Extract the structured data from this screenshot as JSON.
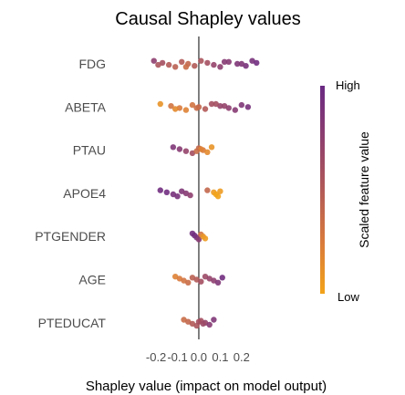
{
  "chart_data": {
    "type": "scatter",
    "subtype": "beeswarm",
    "title": "Causal Shapley values",
    "xlabel": "Shapley value (impact on model output)",
    "ylabel": "",
    "xlim": [
      -0.29,
      0.35
    ],
    "xticks": [
      -0.2,
      -0.1,
      0.0,
      0.1,
      0.2
    ],
    "xtick_labels": [
      "-0.2",
      "-0.1",
      "0.0",
      "0.1",
      "0.2"
    ],
    "grid": false,
    "zero_line": true,
    "legend": {
      "title": "Scaled feature value",
      "high_label": "High",
      "low_label": "Low",
      "placement": "right",
      "colors": [
        "#f2a31a",
        "#d97a3c",
        "#b25a58",
        "#8e3f6f",
        "#6a2a83"
      ]
    },
    "features": [
      {
        "name": "FDG",
        "points": [
          {
            "x": -0.21,
            "c": 0.75
          },
          {
            "x": -0.17,
            "c": 0.6
          },
          {
            "x": -0.14,
            "c": 0.5
          },
          {
            "x": -0.11,
            "c": 0.45
          },
          {
            "x": -0.08,
            "c": 0.5
          },
          {
            "x": -0.05,
            "c": 0.4
          },
          {
            "x": -0.02,
            "c": 0.5
          },
          {
            "x": 0.01,
            "c": 0.55
          },
          {
            "x": 0.04,
            "c": 0.6
          },
          {
            "x": 0.07,
            "c": 0.7
          },
          {
            "x": 0.1,
            "c": 0.75
          },
          {
            "x": 0.14,
            "c": 0.8
          },
          {
            "x": 0.18,
            "c": 0.85
          },
          {
            "x": 0.22,
            "c": 0.9
          },
          {
            "x": 0.25,
            "c": 0.9
          },
          {
            "x": 0.27,
            "c": 0.95
          },
          {
            "x": -0.19,
            "c": 0.55
          },
          {
            "x": -0.06,
            "c": 0.35
          },
          {
            "x": 0.12,
            "c": 0.8
          },
          {
            "x": 0.2,
            "c": 0.85
          }
        ]
      },
      {
        "name": "ABETA",
        "points": [
          {
            "x": -0.18,
            "c": 0.1
          },
          {
            "x": -0.13,
            "c": 0.3
          },
          {
            "x": -0.09,
            "c": 0.25
          },
          {
            "x": -0.06,
            "c": 0.2
          },
          {
            "x": -0.03,
            "c": 0.3
          },
          {
            "x": 0.0,
            "c": 0.4
          },
          {
            "x": 0.03,
            "c": 0.5
          },
          {
            "x": 0.06,
            "c": 0.6
          },
          {
            "x": 0.1,
            "c": 0.7
          },
          {
            "x": 0.14,
            "c": 0.75
          },
          {
            "x": 0.17,
            "c": 0.8
          },
          {
            "x": 0.2,
            "c": 0.85
          },
          {
            "x": 0.23,
            "c": 0.9
          },
          {
            "x": -0.11,
            "c": 0.15
          },
          {
            "x": 0.08,
            "c": 0.6
          },
          {
            "x": 0.12,
            "c": 0.7
          },
          {
            "x": -0.01,
            "c": 0.35
          }
        ]
      },
      {
        "name": "PTAU",
        "points": [
          {
            "x": -0.12,
            "c": 0.85
          },
          {
            "x": -0.09,
            "c": 0.8
          },
          {
            "x": -0.06,
            "c": 0.7
          },
          {
            "x": -0.03,
            "c": 0.6
          },
          {
            "x": 0.0,
            "c": 0.4
          },
          {
            "x": 0.02,
            "c": 0.25
          },
          {
            "x": 0.04,
            "c": 0.15
          },
          {
            "x": 0.06,
            "c": 0.1
          },
          {
            "x": 0.01,
            "c": 0.2
          },
          {
            "x": -0.01,
            "c": 0.35
          }
        ]
      },
      {
        "name": "APOE4",
        "points": [
          {
            "x": -0.18,
            "c": 0.95
          },
          {
            "x": -0.15,
            "c": 0.95
          },
          {
            "x": -0.12,
            "c": 0.9
          },
          {
            "x": -0.1,
            "c": 0.9
          },
          {
            "x": -0.08,
            "c": 0.85
          },
          {
            "x": -0.06,
            "c": 0.8
          },
          {
            "x": -0.04,
            "c": 0.75
          },
          {
            "x": 0.04,
            "c": 0.4
          },
          {
            "x": 0.07,
            "c": 0.05
          },
          {
            "x": 0.08,
            "c": 0.0
          },
          {
            "x": 0.09,
            "c": 0.0
          },
          {
            "x": 0.1,
            "c": 0.05
          }
        ]
      },
      {
        "name": "PTGENDER",
        "points": [
          {
            "x": -0.03,
            "c": 0.95
          },
          {
            "x": -0.02,
            "c": 0.95
          },
          {
            "x": -0.01,
            "c": 0.9
          },
          {
            "x": 0.0,
            "c": 0.8
          },
          {
            "x": 0.01,
            "c": 0.3
          },
          {
            "x": 0.02,
            "c": 0.1
          },
          {
            "x": 0.03,
            "c": 0.05
          }
        ]
      },
      {
        "name": "AGE",
        "points": [
          {
            "x": -0.11,
            "c": 0.2
          },
          {
            "x": -0.09,
            "c": 0.25
          },
          {
            "x": -0.07,
            "c": 0.3
          },
          {
            "x": -0.05,
            "c": 0.35
          },
          {
            "x": -0.03,
            "c": 0.45
          },
          {
            "x": -0.01,
            "c": 0.5
          },
          {
            "x": 0.01,
            "c": 0.6
          },
          {
            "x": 0.03,
            "c": 0.65
          },
          {
            "x": 0.05,
            "c": 0.7
          },
          {
            "x": 0.07,
            "c": 0.75
          },
          {
            "x": 0.09,
            "c": 0.85
          },
          {
            "x": 0.11,
            "c": 0.95
          }
        ]
      },
      {
        "name": "PTEDUCAT",
        "points": [
          {
            "x": -0.07,
            "c": 0.35
          },
          {
            "x": -0.05,
            "c": 0.4
          },
          {
            "x": -0.03,
            "c": 0.5
          },
          {
            "x": -0.01,
            "c": 0.55
          },
          {
            "x": 0.01,
            "c": 0.6
          },
          {
            "x": 0.03,
            "c": 0.7
          },
          {
            "x": 0.05,
            "c": 0.8
          },
          {
            "x": 0.07,
            "c": 0.85
          },
          {
            "x": 0.0,
            "c": 0.6
          },
          {
            "x": 0.02,
            "c": 0.65
          }
        ]
      }
    ]
  }
}
